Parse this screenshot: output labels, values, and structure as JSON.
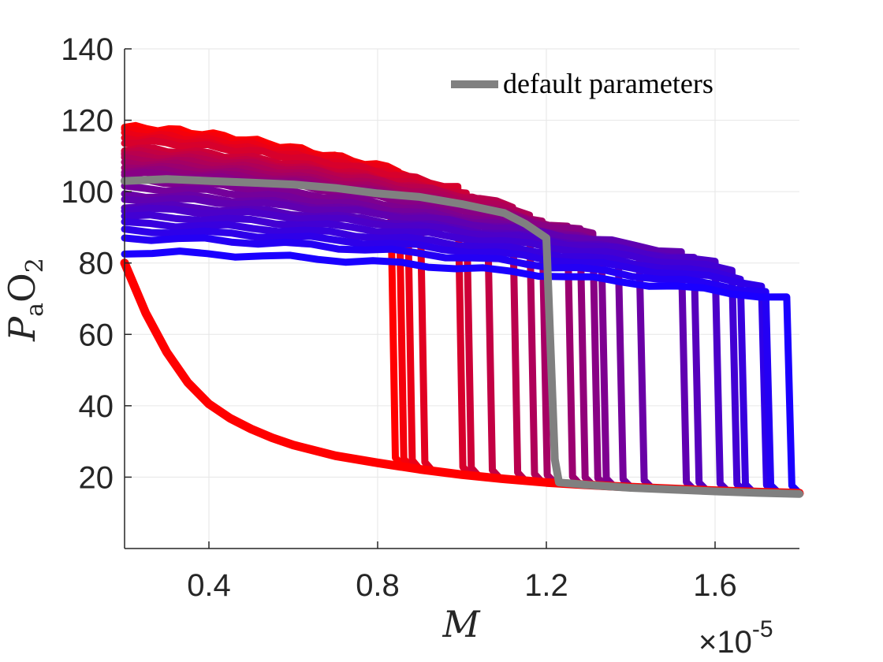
{
  "chart_data": {
    "type": "line",
    "xlabel": "M",
    "ylabel": "PaO2",
    "ylabel_parts": {
      "base": "P",
      "sub": "a",
      "rest": "O",
      "rest_sub": "2"
    },
    "x_multiplier": "×10",
    "x_multiplier_exp": "-5",
    "xlim": [
      0.2,
      1.8
    ],
    "ylim": [
      0,
      140
    ],
    "xticks": [
      0.4,
      0.8,
      1.2,
      1.6
    ],
    "xtick_labels": [
      "0.4",
      "0.8",
      "1.2",
      "1.6"
    ],
    "yticks": [
      20,
      40,
      60,
      80,
      100,
      120,
      140
    ],
    "ytick_labels": [
      "20",
      "40",
      "60",
      "80",
      "100",
      "120",
      "140"
    ],
    "grid": true,
    "legend": {
      "position": "top-right",
      "entries": [
        "default parameters"
      ]
    },
    "colors": {
      "red_end": "#ff0000",
      "blue_end": "#1a00ff",
      "default": "#808080",
      "grid": "#e6e6e6",
      "axis": "#262626"
    },
    "lower_branch": {
      "x": [
        0.2,
        0.25,
        0.3,
        0.35,
        0.4,
        0.45,
        0.5,
        0.55,
        0.6,
        0.7,
        0.8,
        0.9,
        1.0,
        1.1,
        1.2,
        1.3,
        1.4,
        1.5,
        1.6,
        1.7,
        1.8
      ],
      "y": [
        80,
        66,
        55,
        46.5,
        40.5,
        36.5,
        33.5,
        31,
        29,
        26,
        24,
        22.2,
        20.7,
        19.5,
        18.5,
        17.8,
        17.2,
        16.7,
        16.2,
        15.8,
        15.5
      ]
    },
    "sweep_series": [
      {
        "start": 118,
        "end": 106,
        "jump_x": 0.83
      },
      {
        "start": 117,
        "end": 106,
        "jump_x": 0.85
      },
      {
        "start": 116,
        "end": 105,
        "jump_x": 0.87
      },
      {
        "start": 115,
        "end": 103,
        "jump_x": 0.9
      },
      {
        "start": 114,
        "end": 101,
        "jump_x": 0.99
      },
      {
        "start": 112,
        "end": 99,
        "jump_x": 1.01
      },
      {
        "start": 111,
        "end": 97,
        "jump_x": 1.06
      },
      {
        "start": 110,
        "end": 96,
        "jump_x": 1.12
      },
      {
        "start": 109,
        "end": 94,
        "jump_x": 1.16
      },
      {
        "start": 108,
        "end": 92,
        "jump_x": 1.19
      },
      {
        "start": 107,
        "end": 90,
        "jump_x": 1.25
      },
      {
        "start": 106,
        "end": 89,
        "jump_x": 1.28
      },
      {
        "start": 105,
        "end": 88,
        "jump_x": 1.31
      },
      {
        "start": 103,
        "end": 86,
        "jump_x": 1.33
      },
      {
        "start": 101,
        "end": 85,
        "jump_x": 1.37
      },
      {
        "start": 99,
        "end": 84,
        "jump_x": 1.42
      },
      {
        "start": 98,
        "end": 83,
        "jump_x": 1.52
      },
      {
        "start": 96,
        "end": 81,
        "jump_x": 1.55
      },
      {
        "start": 95,
        "end": 80,
        "jump_x": 1.6
      },
      {
        "start": 93,
        "end": 78,
        "jump_x": 1.64
      },
      {
        "start": 91,
        "end": 76,
        "jump_x": 1.66
      },
      {
        "start": 89,
        "end": 74,
        "jump_x": 1.71
      },
      {
        "start": 87,
        "end": 72,
        "jump_x": 1.72
      },
      {
        "start": 83,
        "end": 70,
        "jump_x": 1.77
      }
    ],
    "default_series": {
      "name": "default parameters",
      "x": [
        0.2,
        0.3,
        0.4,
        0.5,
        0.6,
        0.7,
        0.8,
        0.9,
        1.0,
        1.1,
        1.15,
        1.2,
        1.22,
        1.23,
        1.3,
        1.4,
        1.5,
        1.6,
        1.7,
        1.8
      ],
      "y": [
        103,
        103.5,
        103,
        102.5,
        102,
        101,
        99.5,
        98.5,
        96.5,
        94,
        91,
        87,
        25,
        18.5,
        17.8,
        17,
        16.5,
        16,
        15.6,
        15.3
      ]
    }
  }
}
